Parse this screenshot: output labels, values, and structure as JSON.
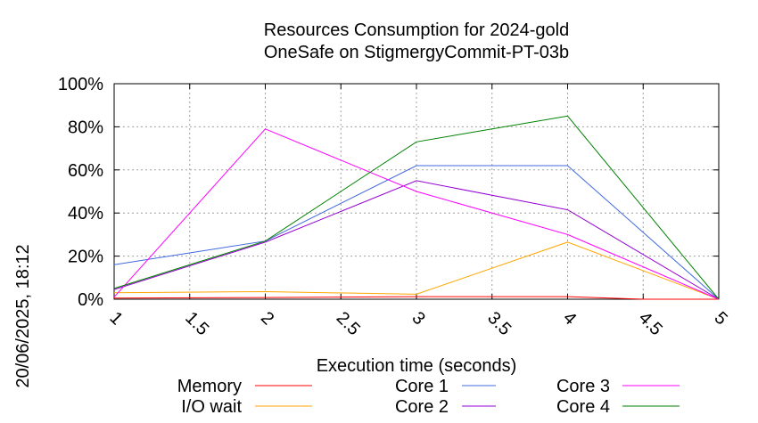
{
  "chart_data": {
    "type": "line",
    "title": "Resources Consumption for 2024-gold",
    "subtitle": "OneSafe on StigmergyCommit-PT-03b",
    "xlabel": "Execution time (seconds)",
    "ylabel": "",
    "xlim": [
      1,
      5
    ],
    "ylim": [
      0,
      100
    ],
    "x_ticks": [
      "1",
      "1.5",
      "2",
      "2.5",
      "3",
      "3.5",
      "4",
      "4.5",
      "5"
    ],
    "x_tick_values": [
      1,
      1.5,
      2,
      2.5,
      3,
      3.5,
      4,
      4.5,
      5
    ],
    "y_ticks": [
      "0%",
      "20%",
      "40%",
      "60%",
      "80%",
      "100%"
    ],
    "y_tick_values": [
      0,
      20,
      40,
      60,
      80,
      100
    ],
    "grid": true,
    "legend_position": "bottom",
    "timestamp": "20/06/2025, 18:12",
    "series": [
      {
        "name": "Memory",
        "color": "#ff0000",
        "x": [
          1,
          2,
          3,
          4,
          4.5,
          5
        ],
        "values": [
          0.5,
          0.8,
          1.2,
          1.2,
          0,
          0
        ]
      },
      {
        "name": "I/O wait",
        "color": "#ffa500",
        "x": [
          1,
          2,
          3,
          4,
          5
        ],
        "values": [
          3,
          3.5,
          2.3,
          26.5,
          0
        ]
      },
      {
        "name": "Core 1",
        "color": "#4169e1",
        "x": [
          1,
          2,
          3,
          4,
          5
        ],
        "values": [
          16,
          27,
          62,
          62,
          0
        ]
      },
      {
        "name": "Core 2",
        "color": "#9400d3",
        "x": [
          1,
          2,
          3,
          4,
          5
        ],
        "values": [
          4.5,
          26.5,
          55,
          41.5,
          0
        ]
      },
      {
        "name": "Core 3",
        "color": "#ff00ff",
        "x": [
          1,
          2,
          3,
          4,
          5
        ],
        "values": [
          1,
          79,
          50,
          30,
          0
        ]
      },
      {
        "name": "Core 4",
        "color": "#008000",
        "x": [
          1,
          2,
          3,
          4,
          5
        ],
        "values": [
          5,
          27,
          73,
          85,
          0
        ]
      }
    ]
  }
}
